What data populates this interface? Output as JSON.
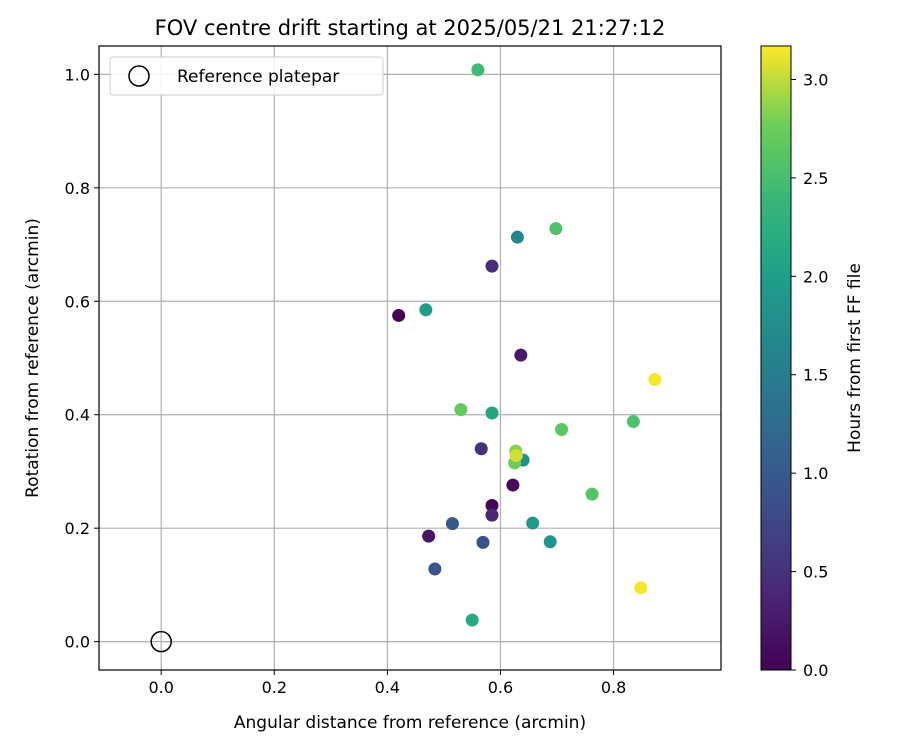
{
  "chart_data": {
    "type": "scatter",
    "title": "FOV centre drift starting at 2025/05/21 21:27:12",
    "xlabel": "Angular distance from reference (arcmin)",
    "ylabel": "Rotation from reference (arcmin)",
    "xlim": [
      -0.11,
      0.99
    ],
    "ylim": [
      -0.05,
      1.05
    ],
    "xticks": [
      0.0,
      0.2,
      0.4,
      0.6,
      0.8
    ],
    "xtick_labels": [
      "0.0",
      "0.2",
      "0.4",
      "0.6",
      "0.8"
    ],
    "yticks": [
      0.0,
      0.2,
      0.4,
      0.6,
      0.8,
      1.0
    ],
    "ytick_labels": [
      "0.0",
      "0.2",
      "0.4",
      "0.6",
      "0.8",
      "1.0"
    ],
    "grid": true,
    "legend": {
      "placement": "upper-left",
      "entries": [
        {
          "label": "Reference platepar",
          "marker": "open-circle"
        }
      ]
    },
    "reference_point": {
      "x": 0.0,
      "y": 0.0
    },
    "colorbar": {
      "label": "Hours from first FF file",
      "colormap": "viridis",
      "range": [
        0.0,
        3.17
      ],
      "ticks": [
        0.0,
        0.5,
        1.0,
        1.5,
        2.0,
        2.5,
        3.0
      ],
      "tick_labels": [
        "0.0",
        "0.5",
        "1.0",
        "1.5",
        "2.0",
        "2.5",
        "3.0"
      ]
    },
    "points": [
      {
        "x": 0.42,
        "y": 0.575,
        "c": 0.0
      },
      {
        "x": 0.585,
        "y": 0.24,
        "c": 0.05
      },
      {
        "x": 0.622,
        "y": 0.276,
        "c": 0.07
      },
      {
        "x": 0.473,
        "y": 0.186,
        "c": 0.2
      },
      {
        "x": 0.636,
        "y": 0.505,
        "c": 0.25
      },
      {
        "x": 0.585,
        "y": 0.223,
        "c": 0.4
      },
      {
        "x": 0.585,
        "y": 0.662,
        "c": 0.45
      },
      {
        "x": 0.566,
        "y": 0.34,
        "c": 0.5
      },
      {
        "x": 0.569,
        "y": 0.175,
        "c": 0.9
      },
      {
        "x": 0.484,
        "y": 0.128,
        "c": 0.95
      },
      {
        "x": 0.515,
        "y": 0.208,
        "c": 1.0
      },
      {
        "x": 0.63,
        "y": 0.713,
        "c": 1.65
      },
      {
        "x": 0.688,
        "y": 0.176,
        "c": 1.85
      },
      {
        "x": 0.657,
        "y": 0.209,
        "c": 1.9
      },
      {
        "x": 0.64,
        "y": 0.32,
        "c": 1.8
      },
      {
        "x": 0.468,
        "y": 0.585,
        "c": 1.95
      },
      {
        "x": 0.585,
        "y": 0.403,
        "c": 2.1
      },
      {
        "x": 0.55,
        "y": 0.038,
        "c": 2.15
      },
      {
        "x": 0.56,
        "y": 1.008,
        "c": 2.45
      },
      {
        "x": 0.698,
        "y": 0.728,
        "c": 2.55
      },
      {
        "x": 0.835,
        "y": 0.388,
        "c": 2.55
      },
      {
        "x": 0.762,
        "y": 0.26,
        "c": 2.6
      },
      {
        "x": 0.708,
        "y": 0.374,
        "c": 2.65
      },
      {
        "x": 0.53,
        "y": 0.409,
        "c": 2.7
      },
      {
        "x": 0.625,
        "y": 0.315,
        "c": 2.75
      },
      {
        "x": 0.627,
        "y": 0.336,
        "c": 2.85
      },
      {
        "x": 0.628,
        "y": 0.328,
        "c": 3.05
      },
      {
        "x": 0.873,
        "y": 0.462,
        "c": 3.15
      },
      {
        "x": 0.848,
        "y": 0.095,
        "c": 3.15
      }
    ]
  }
}
